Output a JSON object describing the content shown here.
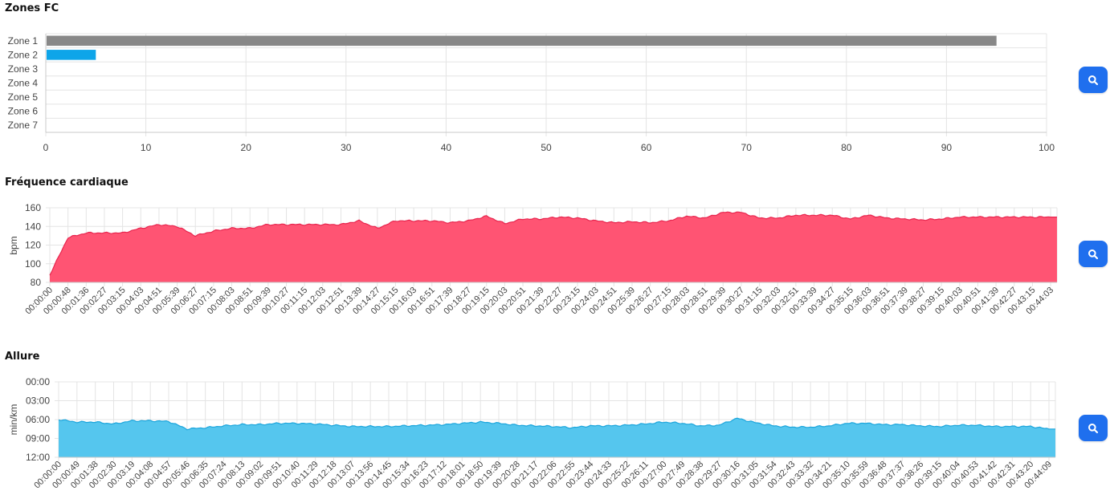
{
  "sections": [
    {
      "title": "Zones FC",
      "button_icon": "search-icon"
    },
    {
      "title": "Fréquence cardiaque",
      "button_icon": "search-icon"
    },
    {
      "title": "Allure",
      "button_icon": "search-icon"
    }
  ],
  "colors": {
    "zone1": "#888888",
    "zone2": "#0ea5e9",
    "hr_fill": "#ff5473",
    "hr_line": "#e8254e",
    "pace_fill": "#55c6ee",
    "pace_line": "#1ba5dc",
    "button": "#1f6fee"
  },
  "chart_data": [
    {
      "type": "bar",
      "orientation": "horizontal",
      "categories": [
        "Zone 1",
        "Zone 2",
        "Zone 3",
        "Zone 4",
        "Zone 5",
        "Zone 6",
        "Zone 7"
      ],
      "values": [
        95,
        5,
        0,
        0,
        0,
        0,
        0
      ],
      "xlim": [
        0,
        100
      ],
      "xticks": [
        0,
        10,
        20,
        30,
        40,
        50,
        60,
        70,
        80,
        90,
        100
      ],
      "grid": true
    },
    {
      "type": "area",
      "ylabel": "bpm",
      "ylim": [
        80,
        160
      ],
      "yticks": [
        80,
        100,
        120,
        140,
        160
      ],
      "x": [
        "00:00:00",
        "00:00:48",
        "00:01:36",
        "00:02:27",
        "00:03:15",
        "00:04:03",
        "00:04:51",
        "00:05:39",
        "00:06:27",
        "00:07:15",
        "00:08:03",
        "00:08:51",
        "00:09:39",
        "00:10:27",
        "00:11:15",
        "00:12:03",
        "00:12:51",
        "00:13:39",
        "00:14:27",
        "00:15:15",
        "00:16:03",
        "00:16:51",
        "00:17:39",
        "00:18:27",
        "00:19:15",
        "00:20:03",
        "00:20:51",
        "00:21:39",
        "00:22:27",
        "00:23:15",
        "00:24:03",
        "00:24:51",
        "00:25:39",
        "00:26:27",
        "00:27:15",
        "00:28:03",
        "00:28:51",
        "00:29:39",
        "00:30:27",
        "00:31:15",
        "00:32:03",
        "00:32:51",
        "00:33:39",
        "00:34:27",
        "00:35:15",
        "00:36:03",
        "00:36:51",
        "00:37:39",
        "00:38:27",
        "00:39:15",
        "00:40:03",
        "00:40:51",
        "00:41:39",
        "00:42:27",
        "00:43:15",
        "00:44:03"
      ],
      "values": [
        88,
        128,
        133,
        133,
        133,
        138,
        142,
        140,
        130,
        135,
        138,
        138,
        142,
        142,
        142,
        142,
        142,
        146,
        138,
        146,
        146,
        146,
        144,
        146,
        151,
        143,
        148,
        148,
        150,
        149,
        146,
        144,
        145,
        144,
        146,
        151,
        149,
        155,
        155,
        149,
        149,
        152,
        152,
        152,
        148,
        152,
        149,
        148,
        147,
        148,
        150,
        150,
        150,
        150,
        150,
        150
      ],
      "grid": true
    },
    {
      "type": "area",
      "ylabel": "min/km",
      "y_inverted": true,
      "ylim": [
        "00:00",
        "12:00"
      ],
      "yticks": [
        "00:00",
        "03:00",
        "06:00",
        "09:00",
        "12:00"
      ],
      "x": [
        "00:00:00",
        "00:00:49",
        "00:01:38",
        "00:02:30",
        "00:03:19",
        "00:04:08",
        "00:04:57",
        "00:05:46",
        "00:06:35",
        "00:07:24",
        "00:08:13",
        "00:09:02",
        "00:09:51",
        "00:10:40",
        "00:11:29",
        "00:12:18",
        "00:13:07",
        "00:13:56",
        "00:14:45",
        "00:15:34",
        "00:16:23",
        "00:17:12",
        "00:18:01",
        "00:18:50",
        "00:19:39",
        "00:20:28",
        "00:21:17",
        "00:22:06",
        "00:22:55",
        "00:23:44",
        "00:24:33",
        "00:25:22",
        "00:26:11",
        "00:27:00",
        "00:27:49",
        "00:28:38",
        "00:29:27",
        "00:30:16",
        "00:31:05",
        "00:31:54",
        "00:32:43",
        "00:33:32",
        "00:34:21",
        "00:35:10",
        "00:35:59",
        "00:36:48",
        "00:37:37",
        "00:38:26",
        "00:39:15",
        "00:40:04",
        "00:40:53",
        "00:41:42",
        "00:42:31",
        "00:43:20",
        "00:44:09"
      ],
      "values_min_per_km": [
        6.0,
        6.4,
        6.4,
        6.7,
        6.2,
        6.2,
        6.3,
        7.5,
        7.3,
        7.0,
        6.8,
        6.8,
        6.6,
        6.6,
        6.7,
        6.9,
        7.1,
        7.1,
        7.1,
        7.0,
        6.9,
        6.8,
        6.6,
        6.4,
        6.6,
        6.9,
        7.0,
        7.1,
        7.3,
        7.0,
        7.0,
        6.9,
        6.7,
        6.4,
        6.6,
        7.0,
        6.9,
        5.8,
        6.5,
        7.0,
        7.2,
        7.2,
        7.0,
        6.6,
        6.6,
        6.8,
        6.8,
        7.0,
        7.1,
        6.9,
        6.9,
        7.1,
        7.1,
        7.1,
        7.5
      ],
      "grid": true
    }
  ]
}
